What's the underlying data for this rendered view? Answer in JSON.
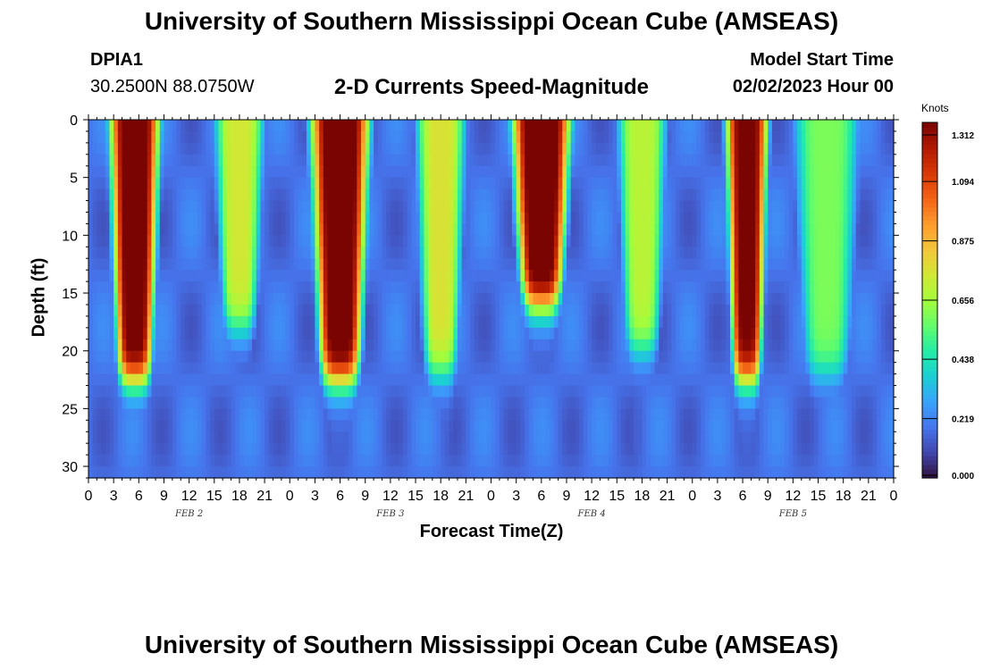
{
  "header": {
    "title": "University of Southern Mississippi Ocean Cube (AMSEAS)",
    "station": "DPIA1",
    "coords": "30.2500N  88.0750W",
    "subtitle": "2-D Currents Speed-Magnitude",
    "model_start_label": "Model Start Time",
    "model_start_value": "02/02/2023 Hour 00"
  },
  "footer": {
    "title": "University of Southern Mississippi Ocean Cube (AMSEAS)"
  },
  "colors": {
    "colormap": [
      "#30123b",
      "#4145ab",
      "#4675ed",
      "#39a2fc",
      "#1bcfd4",
      "#24eca6",
      "#61fc6c",
      "#a4fc3b",
      "#d1e834",
      "#f3c63a",
      "#fe9b2d",
      "#f36315",
      "#d93806",
      "#b11901",
      "#7a0402"
    ]
  },
  "chart_data": {
    "type": "heatmap",
    "title": "2-D Currents Speed-Magnitude",
    "xlabel": "Forecast Time(Z)",
    "ylabel": "Depth (ft)",
    "x_ticks": [
      "0",
      "3",
      "6",
      "9",
      "12",
      "15",
      "18",
      "21",
      "0",
      "3",
      "6",
      "9",
      "12",
      "15",
      "18",
      "21",
      "0",
      "3",
      "6",
      "9",
      "12",
      "15",
      "18",
      "21",
      "0",
      "3",
      "6",
      "9",
      "12",
      "15",
      "18",
      "21",
      "0"
    ],
    "day_labels": [
      "FEB 2",
      "FEB 3",
      "FEB 4",
      "FEB 5"
    ],
    "y_ticks": [
      0,
      5,
      10,
      15,
      20,
      25,
      30
    ],
    "ylim": [
      0,
      31
    ],
    "xlim_hours": [
      0,
      96
    ],
    "colorbar": {
      "unit": "Knots",
      "ticks": [
        "0.000",
        "0.219",
        "0.438",
        "0.656",
        "0.875",
        "1.094",
        "1.312"
      ],
      "range": [
        0,
        1.312
      ]
    },
    "features": [
      {
        "hour": 5.5,
        "peak": 1.25,
        "half_width_hours": 3.0,
        "max_depth_ft": 22.5
      },
      {
        "hour": 30.0,
        "peak": 1.28,
        "half_width_hours": 3.5,
        "max_depth_ft": 22.5
      },
      {
        "hour": 54.0,
        "peak": 1.3,
        "half_width_hours": 3.5,
        "max_depth_ft": 16.0
      },
      {
        "hour": 78.5,
        "peak": 1.2,
        "half_width_hours": 2.5,
        "max_depth_ft": 22.5
      },
      {
        "hour": 18.0,
        "peak": 0.6,
        "half_width_hours": 3.0,
        "max_depth_ft": 18.0
      },
      {
        "hour": 42.0,
        "peak": 0.62,
        "half_width_hours": 3.0,
        "max_depth_ft": 22.0
      },
      {
        "hour": 66.0,
        "peak": 0.55,
        "half_width_hours": 3.0,
        "max_depth_ft": 20.0
      },
      {
        "hour": 88.0,
        "peak": 0.45,
        "half_width_hours": 4.0,
        "max_depth_ft": 22.0
      }
    ]
  }
}
